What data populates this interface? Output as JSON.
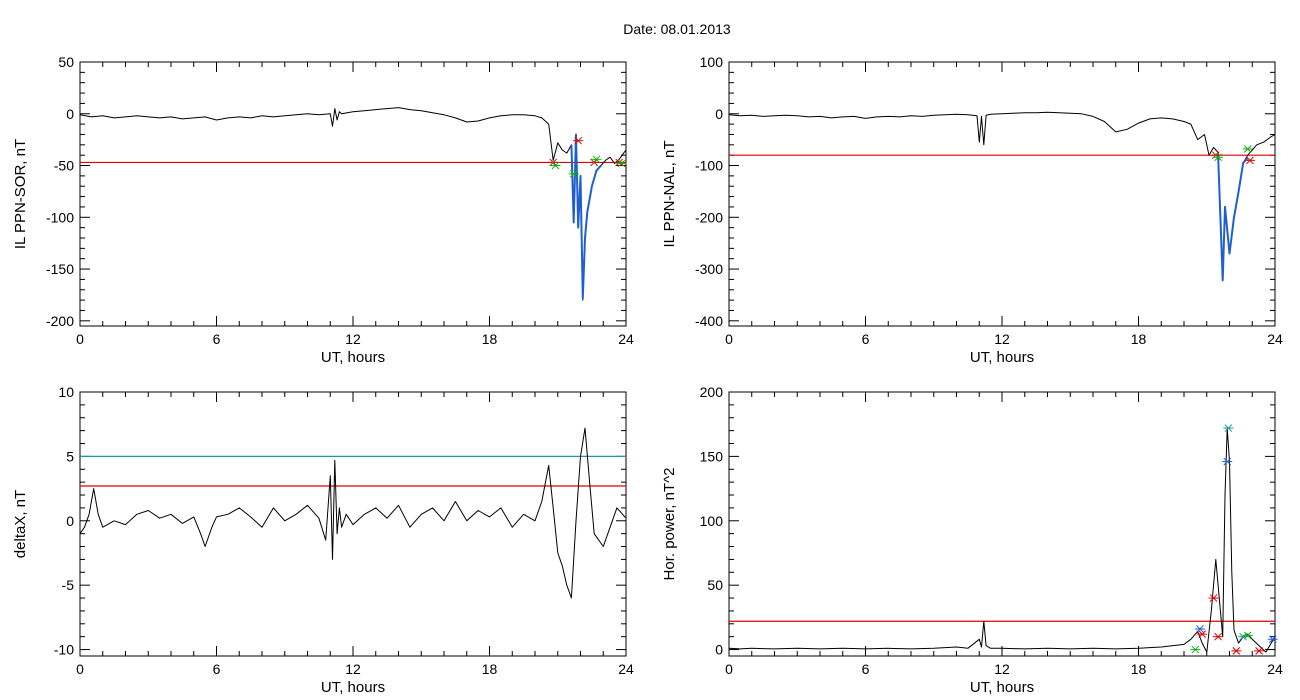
{
  "figure": {
    "title": "Date:  08.01.2013"
  },
  "colors": {
    "trace": "#000000",
    "threshold": "#e00000",
    "threshold2": "#1a9a9a",
    "fit": "#1f5fd0",
    "fit2": "#20a050",
    "marker_red": "#e00000",
    "marker_green": "#10b010",
    "marker_blue": "#1f5fd0",
    "marker_teal": "#1a9a9a"
  },
  "chart_data": [
    {
      "type": "line",
      "xlabel": "UT, hours",
      "ylabel": "IL PPN-SOR, nT",
      "xlim": [
        0,
        24
      ],
      "ylim": [
        -205,
        50
      ],
      "xticks": [
        0,
        6,
        12,
        18,
        24
      ],
      "yticks": [
        50,
        0,
        -50,
        -100,
        -150,
        -200
      ],
      "grid": false,
      "threshold": -47,
      "series": [
        {
          "x": [
            0,
            0.5,
            1,
            1.5,
            2,
            2.5,
            3,
            3.5,
            4,
            4.5,
            5,
            5.5,
            6,
            6.5,
            7,
            7.5,
            8,
            8.5,
            9,
            9.5,
            10,
            10.5,
            11,
            11.1,
            11.2,
            11.3,
            11.4,
            11.5,
            12,
            12.5,
            13,
            13.5,
            14,
            14.5,
            15,
            15.5,
            16,
            16.5,
            17,
            17.5,
            18,
            18.5,
            19,
            19.5,
            20,
            20.3,
            20.6,
            20.8,
            21,
            21.2,
            21.4,
            21.6,
            21.7,
            21.8,
            21.9,
            22.0,
            22.1,
            22.2,
            22.3,
            22.5,
            22.7,
            22.9,
            23.1,
            23.3,
            23.5,
            23.7,
            23.9,
            24
          ],
          "y": [
            -1,
            -3,
            -2,
            -4,
            -3,
            -2,
            -3,
            -4,
            -3,
            -5,
            -4,
            -3,
            -6,
            -4,
            -3,
            -4,
            -2,
            -3,
            -2,
            -1,
            0,
            -1,
            0,
            -12,
            5,
            -6,
            2,
            0,
            2,
            3,
            4,
            5,
            6,
            4,
            3,
            1,
            -1,
            -4,
            -8,
            -7,
            -4,
            -2,
            -1,
            -1,
            -2,
            -4,
            -10,
            -45,
            -28,
            -35,
            -38,
            -30,
            -105,
            -20,
            -110,
            -60,
            -180,
            -120,
            -95,
            -70,
            -55,
            -50,
            -45,
            -42,
            -48,
            -44,
            -38,
            -35
          ]
        }
      ],
      "fit": {
        "x": [
          21.6,
          21.7,
          21.8,
          21.9,
          22.0,
          22.1,
          22.2,
          22.3,
          22.5,
          22.7,
          22.9
        ],
        "y": [
          -30,
          -105,
          -20,
          -110,
          -60,
          -178,
          -120,
          -95,
          -70,
          -55,
          -50
        ]
      },
      "markers": [
        {
          "x": 20.8,
          "y": -47,
          "color": "marker_red"
        },
        {
          "x": 21.9,
          "y": -26,
          "color": "marker_red"
        },
        {
          "x": 22.6,
          "y": -47,
          "color": "marker_red"
        },
        {
          "x": 23.7,
          "y": -47,
          "color": "marker_red"
        },
        {
          "x": 20.9,
          "y": -50,
          "color": "marker_green"
        },
        {
          "x": 21.7,
          "y": -58,
          "color": "marker_green"
        },
        {
          "x": 22.7,
          "y": -44,
          "color": "marker_green"
        },
        {
          "x": 23.8,
          "y": -48,
          "color": "marker_green"
        }
      ]
    },
    {
      "type": "line",
      "xlabel": "UT, hours",
      "ylabel": "IL PPN-NAL, nT",
      "xlim": [
        0,
        24
      ],
      "ylim": [
        -410,
        100
      ],
      "xticks": [
        0,
        6,
        12,
        18,
        24
      ],
      "yticks": [
        100,
        0,
        -100,
        -200,
        -300,
        -400
      ],
      "grid": false,
      "threshold": -80,
      "series": [
        {
          "x": [
            0,
            0.5,
            1,
            1.5,
            2,
            2.5,
            3,
            3.5,
            4,
            4.5,
            5,
            5.5,
            6,
            6.5,
            7,
            7.5,
            8,
            8.5,
            9,
            9.5,
            10,
            10.5,
            10.9,
            11,
            11.1,
            11.2,
            11.3,
            11.5,
            12,
            12.5,
            13,
            13.5,
            14,
            14.5,
            15,
            15.5,
            16,
            16.5,
            17,
            17.5,
            18,
            18.5,
            19,
            19.5,
            20,
            20.3,
            20.6,
            20.9,
            21.1,
            21.3,
            21.5,
            21.6,
            21.7,
            21.8,
            22.0,
            22.2,
            22.4,
            22.6,
            22.8,
            23.0,
            23.2,
            23.5,
            23.8,
            24
          ],
          "y": [
            -2,
            -4,
            -3,
            -5,
            -4,
            -3,
            -4,
            -6,
            -5,
            -8,
            -6,
            -5,
            -9,
            -6,
            -5,
            -6,
            -4,
            -5,
            -3,
            -2,
            -1,
            -2,
            -4,
            -55,
            -5,
            -60,
            -3,
            -1,
            0,
            1,
            2,
            2,
            3,
            2,
            1,
            0,
            -5,
            -15,
            -35,
            -30,
            -18,
            -10,
            -8,
            -10,
            -15,
            -20,
            -50,
            -40,
            -80,
            -65,
            -75,
            -200,
            -320,
            -180,
            -270,
            -200,
            -150,
            -95,
            -80,
            -70,
            -60,
            -55,
            -45,
            -40
          ]
        }
      ],
      "fit": {
        "x": [
          21.5,
          21.6,
          21.7,
          21.8,
          22.0,
          22.2,
          22.4,
          22.6,
          22.8
        ],
        "y": [
          -80,
          -200,
          -322,
          -180,
          -270,
          -200,
          -150,
          -95,
          -85
        ]
      },
      "markers": [
        {
          "x": 21.4,
          "y": -80,
          "color": "marker_red"
        },
        {
          "x": 22.9,
          "y": -90,
          "color": "marker_red"
        },
        {
          "x": 21.5,
          "y": -84,
          "color": "marker_green"
        },
        {
          "x": 22.8,
          "y": -68,
          "color": "marker_green"
        }
      ]
    },
    {
      "type": "line",
      "xlabel": "UT, hours",
      "ylabel": "deltaX, nT",
      "xlim": [
        0,
        24
      ],
      "ylim": [
        -10.5,
        10
      ],
      "xticks": [
        0,
        6,
        12,
        18,
        24
      ],
      "yticks": [
        10,
        5,
        0,
        -5,
        -10
      ],
      "grid": false,
      "threshold": 2.7,
      "threshold2": 5.0,
      "series": [
        {
          "x": [
            0,
            0.2,
            0.4,
            0.6,
            0.8,
            1,
            1.5,
            2,
            2.5,
            3,
            3.5,
            4,
            4.5,
            5,
            5.3,
            5.5,
            5.8,
            6,
            6.5,
            7,
            7.5,
            8,
            8.5,
            9,
            9.5,
            10,
            10.5,
            10.8,
            11.0,
            11.1,
            11.2,
            11.3,
            11.4,
            11.5,
            11.7,
            12,
            12.5,
            13,
            13.5,
            14,
            14.5,
            15,
            15.5,
            16,
            16.5,
            17,
            17.5,
            18,
            18.5,
            19,
            19.5,
            20,
            20.3,
            20.6,
            20.8,
            21.0,
            21.2,
            21.4,
            21.6,
            21.8,
            22.0,
            22.2,
            22.4,
            22.6,
            22.8,
            23.0,
            23.3,
            23.6,
            24
          ],
          "y": [
            -1,
            -0.5,
            0.5,
            2.5,
            0.5,
            -0.5,
            0,
            -0.3,
            0.5,
            0.8,
            0.2,
            0.5,
            -0.2,
            0.3,
            -1,
            -2,
            -0.5,
            0.3,
            0.5,
            1,
            0.3,
            -0.5,
            1,
            0,
            0.5,
            1.2,
            0.2,
            -1.5,
            3.5,
            -3,
            4.7,
            -1,
            1,
            -0.5,
            0.5,
            -0.3,
            0.5,
            1,
            0.2,
            1.2,
            -0.5,
            0.5,
            1,
            0,
            1.5,
            0,
            0.8,
            0.3,
            1,
            -0.5,
            0.5,
            0,
            1.5,
            4.3,
            1,
            -2.5,
            -3.5,
            -5,
            -6,
            0,
            5,
            7.2,
            3,
            -1,
            -1.5,
            -2,
            -0.5,
            1,
            0.2
          ]
        }
      ],
      "markers": []
    },
    {
      "type": "line",
      "xlabel": "UT, hours",
      "ylabel": "Hor. power, nT^2",
      "xlim": [
        0,
        24
      ],
      "ylim": [
        -5,
        200
      ],
      "xticks": [
        0,
        6,
        12,
        18,
        24
      ],
      "yticks": [
        200,
        150,
        100,
        50,
        0
      ],
      "grid": false,
      "threshold": 22,
      "series": [
        {
          "x": [
            0,
            0.5,
            1,
            2,
            3,
            4,
            5,
            6,
            7,
            8,
            9,
            10,
            10.5,
            11.0,
            11.1,
            11.2,
            11.3,
            11.5,
            12,
            13,
            14,
            15,
            16,
            17,
            18,
            19,
            20,
            20.3,
            20.6,
            20.8,
            21.0,
            21.2,
            21.4,
            21.6,
            21.7,
            21.8,
            21.9,
            22.0,
            22.1,
            22.2,
            22.4,
            22.6,
            22.8,
            23.0,
            23.3,
            23.6,
            24
          ],
          "y": [
            1,
            0.5,
            1,
            0.5,
            1,
            0.5,
            1,
            0.5,
            1,
            0.5,
            1,
            2,
            1,
            8,
            2,
            22,
            3,
            1,
            1,
            0.5,
            1,
            0.5,
            1,
            0.5,
            1,
            2,
            4,
            8,
            14,
            5,
            -2,
            30,
            70,
            30,
            10,
            120,
            172,
            146,
            60,
            15,
            5,
            10,
            12,
            8,
            3,
            -2,
            10
          ]
        }
      ],
      "markers": [
        {
          "x": 20.8,
          "y": 12,
          "color": "marker_red"
        },
        {
          "x": 21.3,
          "y": 40,
          "color": "marker_red"
        },
        {
          "x": 21.5,
          "y": 10,
          "color": "marker_red"
        },
        {
          "x": 22.3,
          "y": -1,
          "color": "marker_red"
        },
        {
          "x": 23.3,
          "y": -1,
          "color": "marker_red"
        },
        {
          "x": 20.7,
          "y": 16,
          "color": "marker_blue"
        },
        {
          "x": 21.95,
          "y": 172,
          "color": "marker_teal"
        },
        {
          "x": 21.9,
          "y": 146,
          "color": "marker_blue"
        },
        {
          "x": 22.6,
          "y": 10,
          "color": "marker_teal"
        },
        {
          "x": 23.9,
          "y": 8,
          "color": "marker_blue"
        },
        {
          "x": 22.8,
          "y": 11,
          "color": "marker_green"
        },
        {
          "x": 20.5,
          "y": 0,
          "color": "marker_green"
        }
      ]
    }
  ]
}
